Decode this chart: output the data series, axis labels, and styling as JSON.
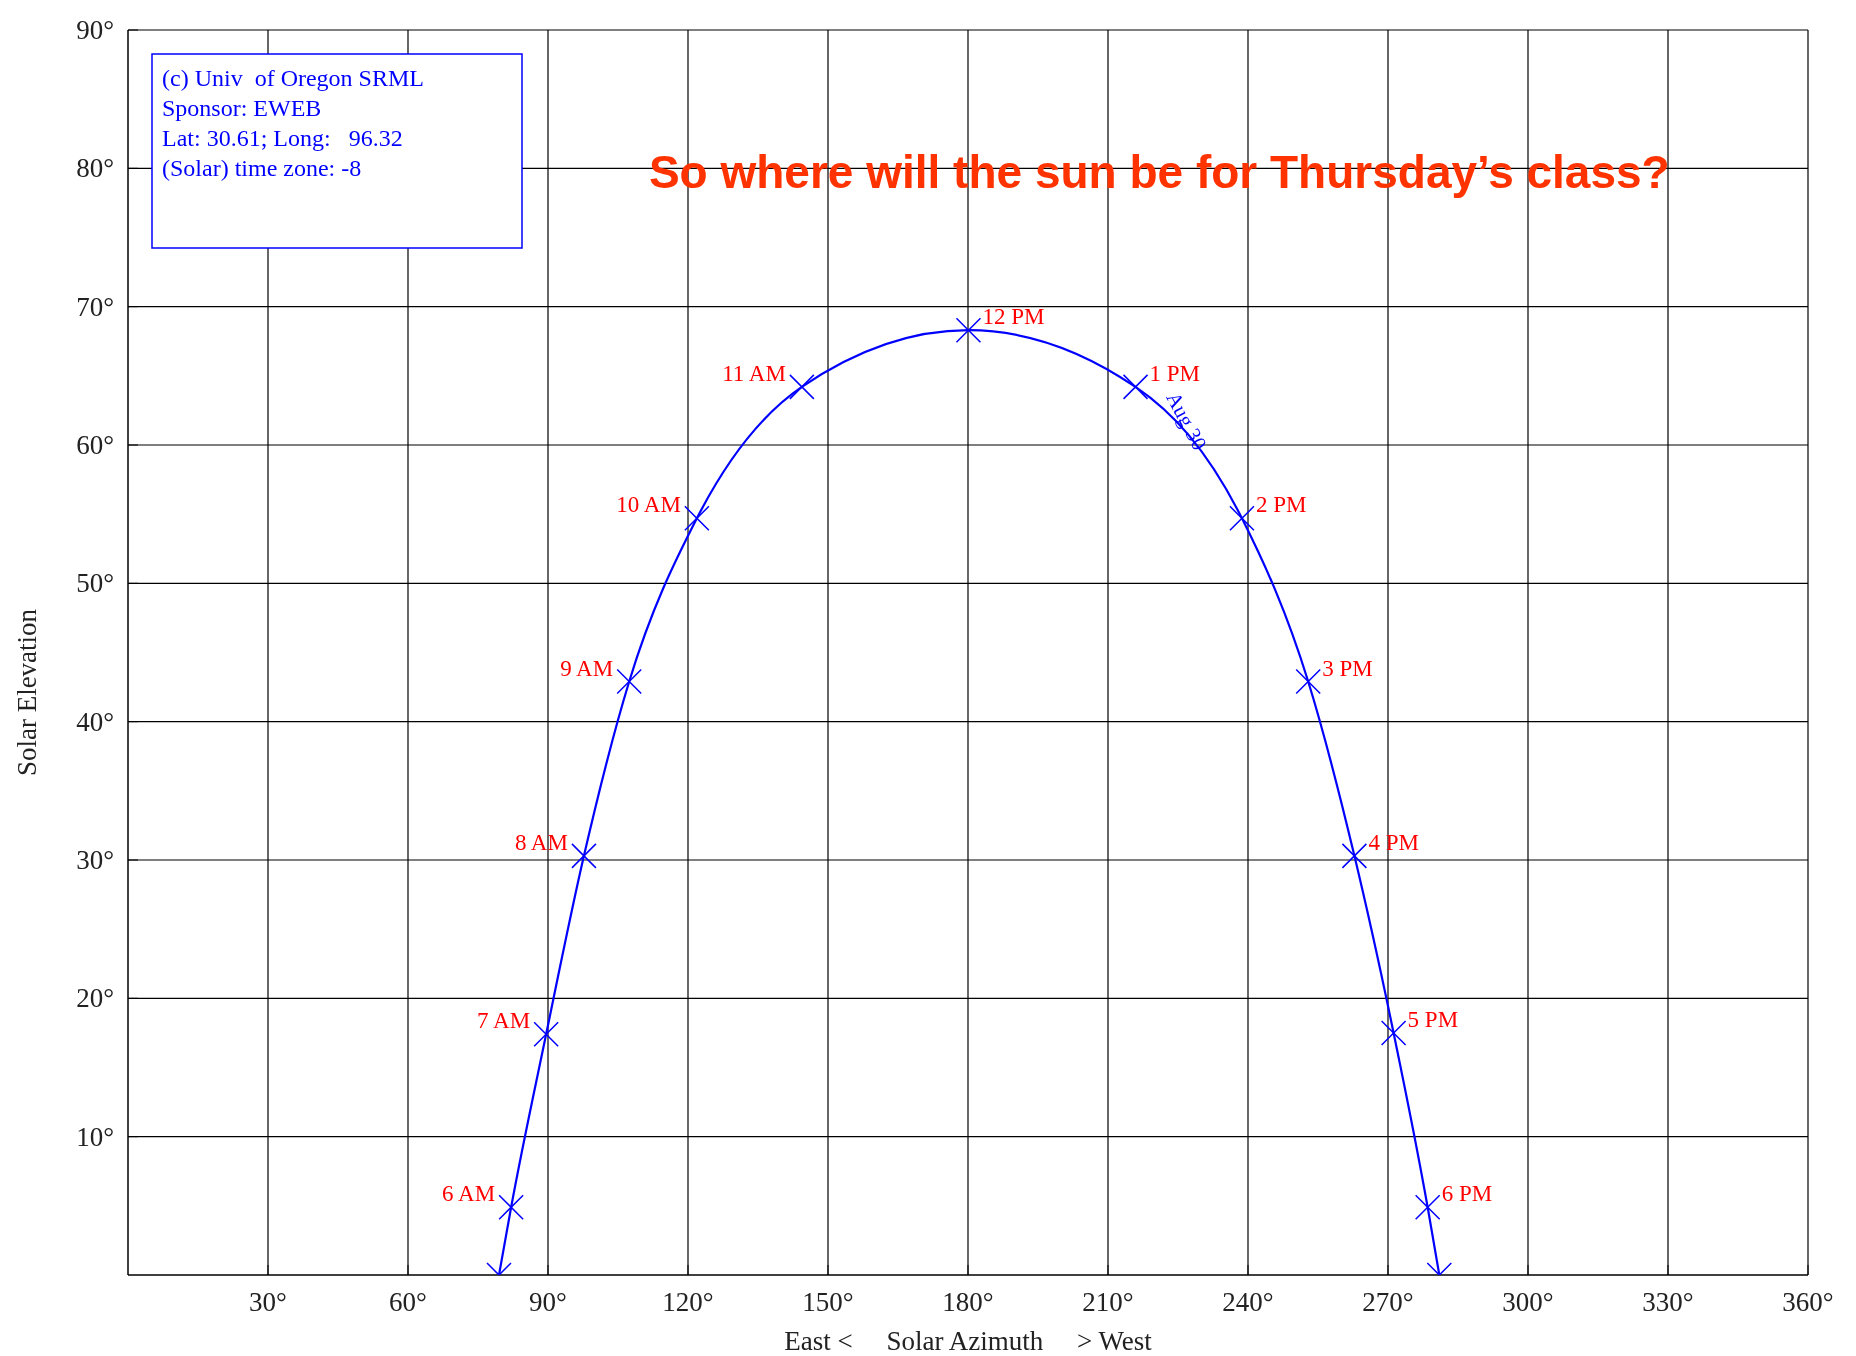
{
  "chart_data": {
    "type": "line",
    "title": "So where will the sun be for Thursday’s class?",
    "xlabel": "East <     Solar Azimuth     > West",
    "ylabel": "Solar Elevation",
    "xlim": [
      0,
      360
    ],
    "ylim": [
      0,
      90
    ],
    "xticks": [
      {
        "value": 30,
        "label": "30°"
      },
      {
        "value": 60,
        "label": "60°"
      },
      {
        "value": 90,
        "label": "90°"
      },
      {
        "value": 120,
        "label": "120°"
      },
      {
        "value": 150,
        "label": "150°"
      },
      {
        "value": 180,
        "label": "180°"
      },
      {
        "value": 210,
        "label": "210°"
      },
      {
        "value": 240,
        "label": "240°"
      },
      {
        "value": 270,
        "label": "270°"
      },
      {
        "value": 300,
        "label": "300°"
      },
      {
        "value": 330,
        "label": "330°"
      },
      {
        "value": 360,
        "label": "360°"
      }
    ],
    "yticks": [
      {
        "value": 10,
        "label": "10°"
      },
      {
        "value": 20,
        "label": "20°"
      },
      {
        "value": 30,
        "label": "30°"
      },
      {
        "value": 40,
        "label": "40°"
      },
      {
        "value": 50,
        "label": "50°"
      },
      {
        "value": 60,
        "label": "60°"
      },
      {
        "value": 70,
        "label": "70°"
      },
      {
        "value": 80,
        "label": "80°"
      },
      {
        "value": 90,
        "label": "90°"
      }
    ],
    "grid": true,
    "series": [
      {
        "type": "line",
        "color": "#0000ff",
        "marker": "cross",
        "x": [
          79.5,
          82.1,
          89.6,
          97.7,
          107.4,
          121.9,
          144.4,
          180.1,
          215.9,
          238.7,
          252.9,
          262.8,
          271.2,
          278.5,
          281
        ],
        "values": [
          0,
          4.9,
          17.4,
          30.3,
          42.9,
          54.7,
          64.2,
          68.3,
          64.2,
          54.7,
          42.9,
          30.3,
          17.5,
          4.9,
          0
        ]
      }
    ],
    "annotations": [
      "(c) Univ  of Oregon SRML\nSponsor: EWEB\nLat: 30.61; Long:   96.32\n(Solar) time zone: -8",
      "Aug 30",
      {
        "text": "6 AM",
        "x": 82.1,
        "y": 4.9
      },
      {
        "text": "7 AM",
        "x": 89.6,
        "y": 17.4
      },
      {
        "text": "8 AM",
        "x": 97.7,
        "y": 30.3
      },
      {
        "text": "9 AM",
        "x": 107.4,
        "y": 42.9
      },
      {
        "text": "10 AM",
        "x": 121.9,
        "y": 54.7
      },
      {
        "text": "11 AM",
        "x": 144.4,
        "y": 64.2
      },
      {
        "text": "12 PM",
        "x": 180.1,
        "y": 68.3
      },
      {
        "text": "1 PM",
        "x": 215.9,
        "y": 64.2
      },
      {
        "text": "2 PM",
        "x": 238.7,
        "y": 54.7
      },
      {
        "text": "3 PM",
        "x": 252.9,
        "y": 42.9
      },
      {
        "text": "4 PM",
        "x": 262.8,
        "y": 30.3
      },
      {
        "text": "5 PM",
        "x": 271.2,
        "y": 17.5
      },
      {
        "text": "6 PM",
        "x": 278.5,
        "y": 4.9
      }
    ]
  }
}
